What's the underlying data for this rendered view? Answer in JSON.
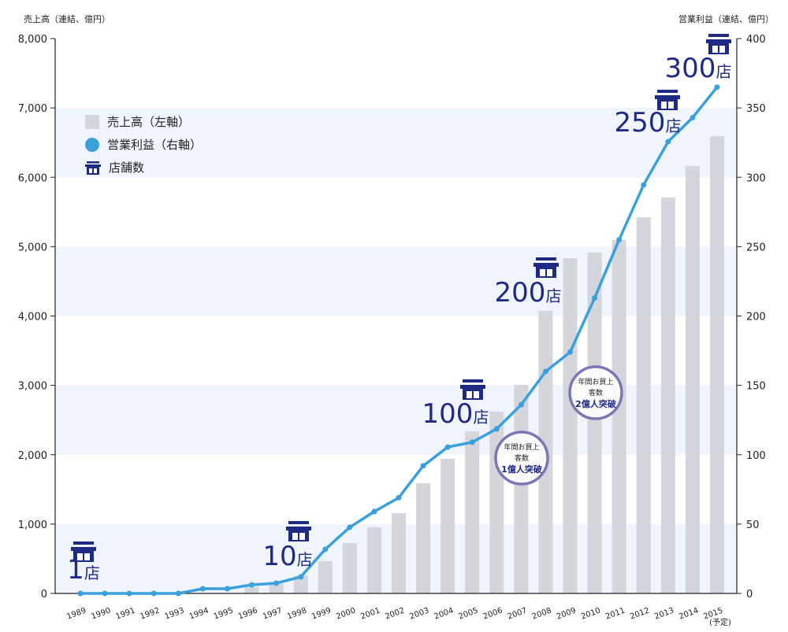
{
  "chart_data": {
    "type": "bar+line",
    "left_axis_title": "売上高（連結、億円）",
    "right_axis_title": "営業利益（連結、億円）",
    "ylim_left": [
      0,
      8000
    ],
    "ylim_right": [
      0,
      400
    ],
    "left_ticks": [
      "0",
      "1,000",
      "2,000",
      "3,000",
      "4,000",
      "5,000",
      "6,000",
      "7,000",
      "8,000"
    ],
    "right_ticks": [
      "0",
      "50",
      "100",
      "150",
      "200",
      "250",
      "300",
      "350",
      "400"
    ],
    "categories": [
      "1989",
      "1990",
      "1991",
      "1992",
      "1993",
      "1994",
      "1995",
      "1996",
      "1997",
      "1998",
      "1999",
      "2000",
      "2001",
      "2002",
      "2003",
      "2004",
      "2005",
      "2006",
      "2007",
      "2008",
      "2009",
      "2010",
      "2011",
      "2012",
      "2013",
      "2014",
      "2015"
    ],
    "forecast_note": "(予定)",
    "series": [
      {
        "name": "売上高（左軸）",
        "type": "bar",
        "axis": "left",
        "color": "#d5d6db",
        "values": [
          0,
          0,
          0,
          0,
          0,
          0,
          0,
          90,
          140,
          260,
          465,
          726,
          953,
          1158,
          1589,
          1941,
          2338,
          2622,
          3008,
          4075,
          4835,
          4915,
          5096,
          5426,
          5709,
          6164,
          6595
        ]
      },
      {
        "name": "営業利益（右軸）",
        "type": "line",
        "axis": "right",
        "color": "#3aa0dc",
        "values": [
          0,
          0,
          0,
          0,
          0,
          3.4,
          3.4,
          6.2,
          7.4,
          11.9,
          31.8,
          47.7,
          59,
          69,
          92,
          105.5,
          109,
          118.6,
          136,
          160,
          174,
          213,
          255,
          294.5,
          325.7,
          343,
          365
        ]
      }
    ],
    "legend": {
      "placement": "top-left",
      "items": [
        "売上高（左軸）",
        "営業利益（右軸）",
        "店舗数"
      ]
    },
    "store_annotations": [
      {
        "year": "1989",
        "num": "1",
        "unit": "店"
      },
      {
        "year": "1997",
        "num": "10",
        "unit": "店"
      },
      {
        "year": "2005",
        "num": "100",
        "unit": "店"
      },
      {
        "year": "2008",
        "num": "200",
        "unit": "店"
      },
      {
        "year": "2012",
        "num": "250",
        "unit": "店"
      },
      {
        "year": "2014",
        "num": "300",
        "unit": "店"
      }
    ],
    "badges": [
      {
        "line1": "年間お買上",
        "line2": "客数",
        "line3": "1億人突破"
      },
      {
        "line1": "年間お買上",
        "line2": "客数",
        "line3": "2億人突破"
      }
    ],
    "colors": {
      "band": "#f0f4fd",
      "bar": "#d5d6db",
      "line": "#3aa0dc",
      "store": "#1e2a84",
      "badge": "#7a77b4"
    }
  }
}
